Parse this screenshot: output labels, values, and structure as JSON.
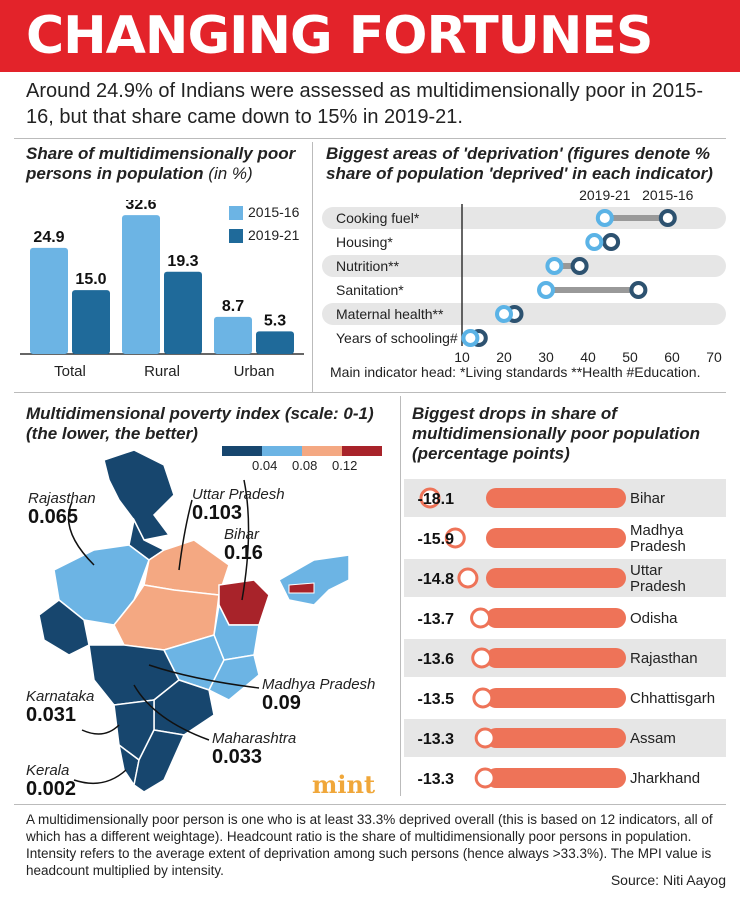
{
  "header": {
    "title": "CHANGING FORTUNES"
  },
  "intro": "Around 24.9% of Indians were assessed as multidimensionally poor in 2015-16, but that share came down to 15% in 2019-21.",
  "colors": {
    "banner": "#e3232a",
    "light_blue": "#6cb4e4",
    "dark_blue": "#1f6a9a",
    "navy": "#17466e",
    "salmon": "#f4a882",
    "dark_red": "#a8232a",
    "orange_bar": "#ee7358"
  },
  "headcount_chart": {
    "title": "Share of multidimensionally poor persons in population",
    "title_unit": "(in %)"
  },
  "deprivation_chart": {
    "title": "Biggest areas of 'deprivation' (figures denote % share of population 'deprived' in each indicator)",
    "note": "Main indicator head: *Living standards **Health #Education."
  },
  "map": {
    "title": "Multidimensional poverty index (scale: 0-1) (the lower, the better)",
    "scale_labels": [
      "0.04",
      "0.08",
      "0.12"
    ],
    "scale_colors": [
      "#17466e",
      "#6cb4e4",
      "#f4a882",
      "#a8232a"
    ],
    "states": [
      {
        "name": "Rajasthan",
        "value": "0.065"
      },
      {
        "name": "Uttar Pradesh",
        "value": "0.103"
      },
      {
        "name": "Bihar",
        "value": "0.16"
      },
      {
        "name": "Madhya Pradesh",
        "value": "0.09"
      },
      {
        "name": "Karnataka",
        "value": "0.031"
      },
      {
        "name": "Maharashtra",
        "value": "0.033"
      },
      {
        "name": "Kerala",
        "value": "0.002"
      }
    ],
    "brand": "mint"
  },
  "drops_chart": {
    "title": "Biggest drops in share of multidimensionally poor population (percentage points)"
  },
  "chart_data": [
    {
      "type": "bar",
      "title": "Share of multidimensionally poor persons in population (in %)",
      "categories": [
        "Total",
        "Rural",
        "Urban"
      ],
      "series": [
        {
          "name": "2015-16",
          "values": [
            24.9,
            32.6,
            8.7
          ]
        },
        {
          "name": "2019-21",
          "values": [
            15.0,
            19.3,
            5.3
          ]
        }
      ],
      "value_labels": [
        [
          "24.9",
          "32.6",
          "8.7"
        ],
        [
          "15.0",
          "19.3",
          "5.3"
        ]
      ],
      "ylim": [
        0,
        36
      ],
      "legend": "top-right"
    },
    {
      "type": "scatter",
      "title": "Biggest areas of 'deprivation'",
      "categories": [
        "Cooking fuel*",
        "Housing*",
        "Nutrition**",
        "Sanitation*",
        "Maternal health**",
        "Years of schooling#"
      ],
      "series": [
        {
          "name": "2019-21",
          "values": [
            44,
            41.5,
            32,
            30,
            20,
            12
          ]
        },
        {
          "name": "2015-16",
          "values": [
            59,
            45.5,
            38,
            52,
            22.5,
            14
          ]
        }
      ],
      "xlim": [
        10,
        70
      ],
      "xticks": [
        "10",
        "20",
        "30",
        "40",
        "50",
        "60",
        "70"
      ]
    },
    {
      "type": "bar",
      "title": "Biggest drops in share of multidimensionally poor population (percentage points)",
      "categories": [
        "Bihar",
        "Madhya Pradesh",
        "Uttar Pradesh",
        "Odisha",
        "Rajasthan",
        "Chhattisgarh",
        "Assam",
        "Jharkhand"
      ],
      "category_lines": [
        [
          "Bihar"
        ],
        [
          "Madhya",
          "Pradesh"
        ],
        [
          "Uttar",
          "Pradesh"
        ],
        [
          "Odisha"
        ],
        [
          "Rajasthan"
        ],
        [
          "Chhattisgarh"
        ],
        [
          "Assam"
        ],
        [
          "Jharkhand"
        ]
      ],
      "values": [
        -18.1,
        -15.9,
        -14.8,
        -13.7,
        -13.6,
        -13.5,
        -13.3,
        -13.3
      ],
      "value_labels": [
        "-18.1",
        "-15.9",
        "-14.8",
        "-13.7",
        "-13.6",
        "-13.5",
        "-13.3",
        "-13.3"
      ]
    }
  ],
  "footnote": "A multidimensionally poor person is one who is at least 33.3% deprived overall (this is based on 12 indicators, all of which has a different weightage). Headcount ratio is the share of multidimensionally poor persons in population. Intensity refers to the average extent of deprivation among such persons (hence always >33.3%). The MPI value is headcount multiplied by intensity.",
  "source": "Source: Niti Aayog"
}
